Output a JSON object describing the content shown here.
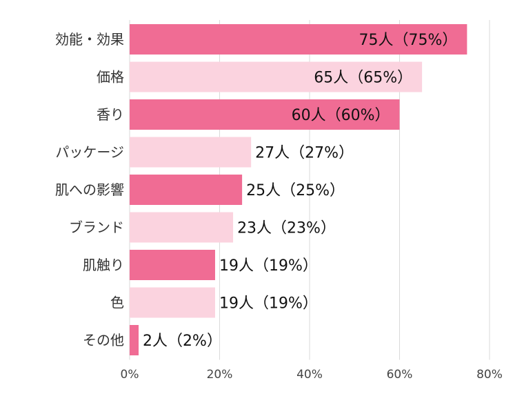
{
  "chart_data": {
    "type": "bar",
    "orientation": "horizontal",
    "categories": [
      "効能・効果",
      "価格",
      "香り",
      "パッケージ",
      "肌への影響",
      "ブランド",
      "肌触り",
      "色",
      "その他"
    ],
    "values": [
      75,
      65,
      60,
      27,
      25,
      23,
      19,
      19,
      2
    ],
    "counts": [
      75,
      65,
      60,
      27,
      25,
      23,
      19,
      19,
      2
    ],
    "data_labels": [
      "75人（75%）",
      "65人（65%）",
      "60人（60%）",
      "27人（27%）",
      "25人（25%）",
      "23人（23%）",
      "19人（19%）",
      "19人（19%）",
      "2人（2%）"
    ],
    "x_ticks": [
      "0%",
      "20%",
      "40%",
      "60%",
      "80%"
    ],
    "xlim": [
      0,
      80
    ],
    "title": "",
    "xlabel": "",
    "ylabel": "",
    "grid": true,
    "legend": "none",
    "colors": {
      "dark": "#F06C94",
      "light": "#FBD3DF"
    },
    "bar_color_pattern": [
      "dark",
      "light",
      "dark",
      "light",
      "dark",
      "light",
      "dark",
      "light",
      "dark"
    ]
  }
}
